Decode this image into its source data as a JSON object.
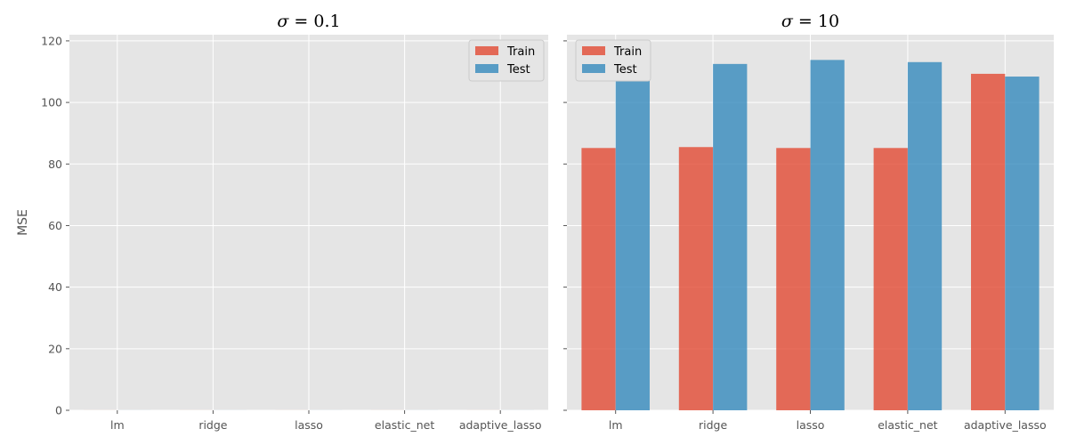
{
  "chart_data": [
    {
      "type": "bar",
      "title_symbol": "σ",
      "title_value": " = 0.1",
      "ylabel": "MSE",
      "categories": [
        "lm",
        "ridge",
        "lasso",
        "elastic_net",
        "adaptive_lasso"
      ],
      "series": [
        {
          "name": "Train",
          "values": [
            0.01,
            0.01,
            0.01,
            0.01,
            0.01
          ],
          "color": "#E24A33"
        },
        {
          "name": "Test",
          "values": [
            0.012,
            0.012,
            0.012,
            0.012,
            0.012
          ],
          "color": "#348ABD"
        }
      ],
      "ylim": [
        0,
        122
      ],
      "yticks": [
        0,
        20,
        40,
        60,
        80,
        100,
        120
      ],
      "legend": "top-right",
      "grid": true
    },
    {
      "type": "bar",
      "title_symbol": "σ",
      "title_value": " = 10",
      "ylabel": "",
      "categories": [
        "lm",
        "ridge",
        "lasso",
        "elastic_net",
        "adaptive_lasso"
      ],
      "series": [
        {
          "name": "Train",
          "values": [
            85.2,
            85.5,
            85.2,
            85.2,
            109.3
          ],
          "color": "#E24A33"
        },
        {
          "name": "Test",
          "values": [
            117.2,
            112.5,
            113.8,
            113.1,
            108.4
          ],
          "color": "#348ABD"
        }
      ],
      "ylim": [
        0,
        122
      ],
      "yticks": [
        0,
        20,
        40,
        60,
        80,
        100,
        120
      ],
      "legend": "top-left",
      "grid": true
    }
  ]
}
